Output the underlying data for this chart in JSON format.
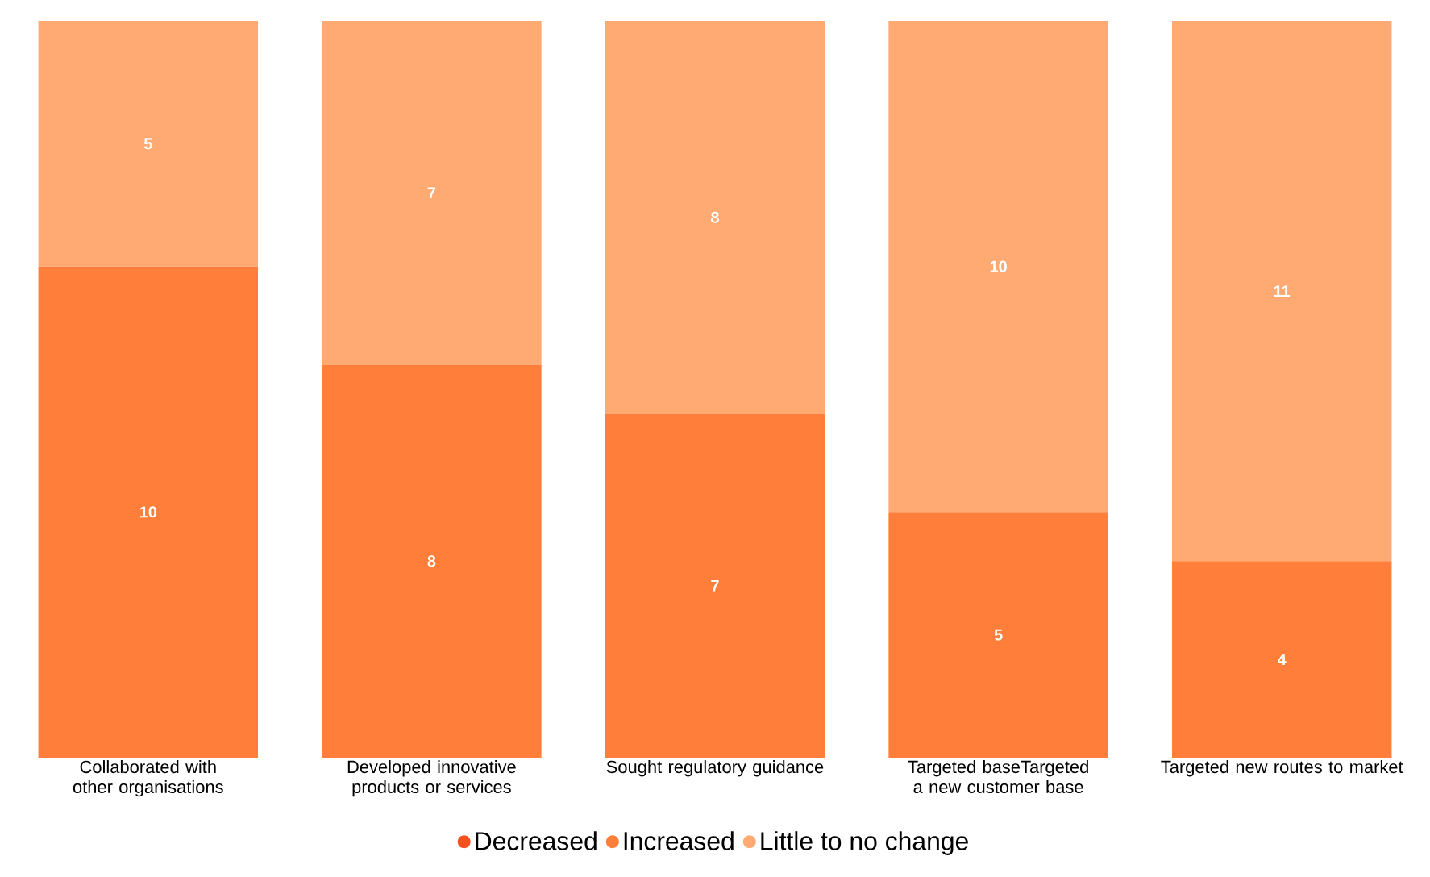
{
  "chart_data": {
    "type": "bar",
    "stacked": true,
    "legend": "bottom",
    "marker": "circle",
    "categories": [
      "Collaborated with other organisations",
      "Developed innovative products or services",
      "Sought regulatory guidance",
      "Targeted baseTargeted a new customer base",
      "Targeted new routes to market"
    ],
    "series": [
      {
        "name": "Decreased",
        "color": "#f4511e",
        "values": [
          0,
          0,
          0,
          0,
          0
        ],
        "value_labels": [
          null,
          null,
          null,
          null,
          null
        ]
      },
      {
        "name": "Increased",
        "color": "#ff7f3a",
        "values": [
          10,
          8,
          7,
          5,
          4
        ],
        "value_labels": [
          "10",
          "8",
          "7",
          "5",
          "4"
        ]
      },
      {
        "name": "Little to no change",
        "color": "#ffaa72",
        "values": [
          5,
          7,
          8,
          10,
          11
        ],
        "value_labels": [
          "5",
          "7",
          "8",
          "10",
          "11"
        ]
      }
    ]
  }
}
